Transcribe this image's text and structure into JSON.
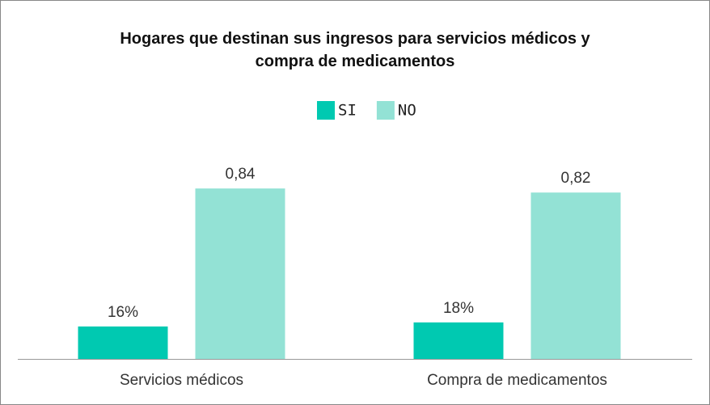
{
  "chart_data": {
    "type": "bar",
    "title": "Hogares que destinan sus ingresos para servicios médicos y compra de medicamentos",
    "categories": [
      "Servicios médicos",
      "Compra de medicamentos"
    ],
    "series": [
      {
        "name": "SI",
        "color": "#00c9b1",
        "values": [
          0.16,
          0.18
        ],
        "value_labels": [
          "16%",
          "18%"
        ]
      },
      {
        "name": "NO",
        "color": "#93e2d5",
        "values": [
          0.84,
          0.82
        ],
        "value_labels": [
          "0,84",
          "0,82"
        ]
      }
    ],
    "legend": "top"
  }
}
